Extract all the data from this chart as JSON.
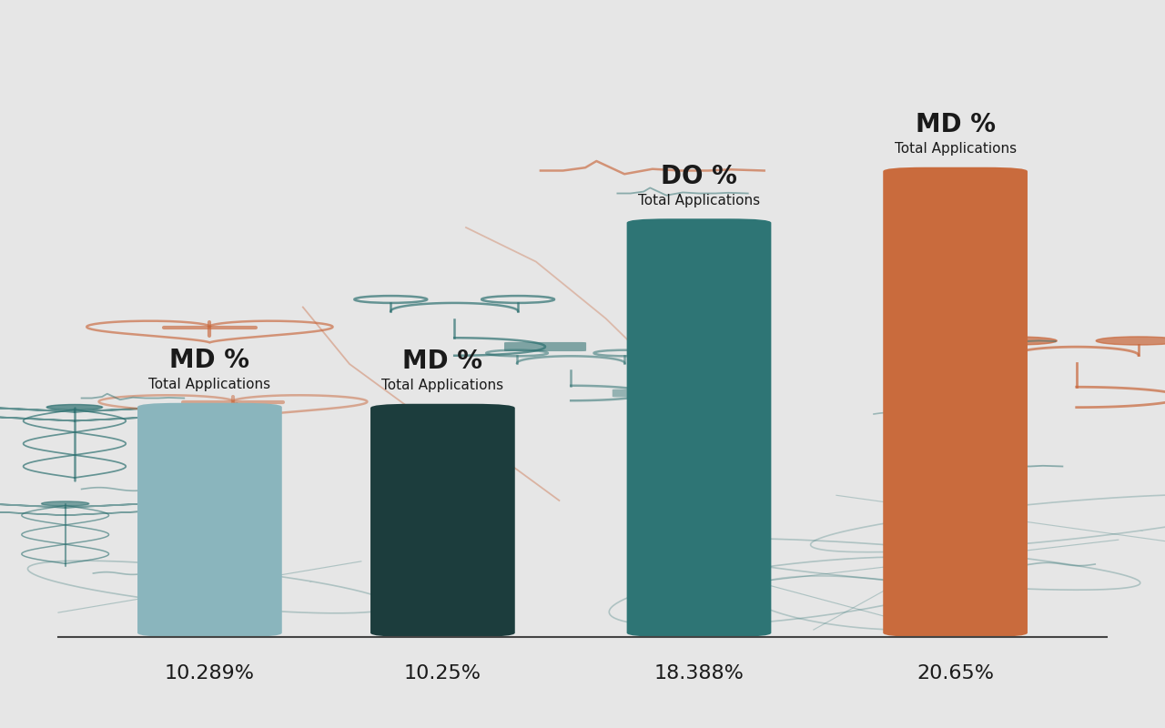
{
  "values": [
    10.289,
    10.25,
    18.388,
    20.65
  ],
  "percentages": [
    "10.289%",
    "10.25%",
    "18.388%",
    "20.65%"
  ],
  "bar_colors": [
    "#8ab5bd",
    "#1c3d3d",
    "#2e7575",
    "#c96b3d"
  ],
  "bar_labels": [
    "MD %",
    "MD %",
    "DO %",
    "MD %"
  ],
  "bar_sublabels": [
    "Total Applications",
    "Total Applications",
    "Total Applications",
    "Total Applications"
  ],
  "background_color": "#e6e6e6",
  "text_color": "#1a1a1a",
  "teal_color": "#2d7070",
  "orange_color": "#c8663a",
  "light_teal": "#8ab5bd",
  "ylim": [
    0,
    28
  ],
  "label_fontsize": 20,
  "sublabel_fontsize": 11,
  "pct_fontsize": 16
}
